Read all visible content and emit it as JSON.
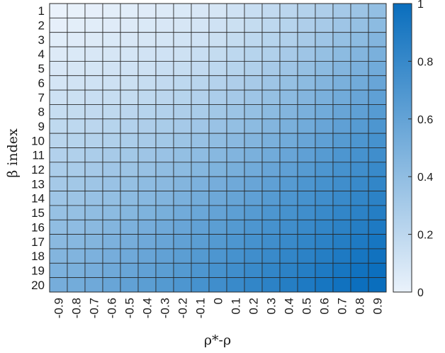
{
  "chart_data": {
    "type": "heatmap",
    "xlabel": "ρ*-ρ",
    "ylabel": "β index",
    "x_categories": [
      "-0.9",
      "-0.8",
      "-0.7",
      "-0.6",
      "-0.5",
      "-0.4",
      "-0.3",
      "-0.2",
      "-0.1",
      "0",
      "0.1",
      "0.2",
      "0.3",
      "0.4",
      "0.5",
      "0.6",
      "0.7",
      "0.8",
      "0.9"
    ],
    "y_categories": [
      "1",
      "2",
      "3",
      "4",
      "5",
      "6",
      "7",
      "8",
      "9",
      "10",
      "11",
      "12",
      "13",
      "14",
      "15",
      "16",
      "17",
      "18",
      "19",
      "20"
    ],
    "values": [
      [
        0.0,
        0.01,
        0.02,
        0.03,
        0.04,
        0.05,
        0.06,
        0.07,
        0.08,
        0.09,
        0.12,
        0.15,
        0.18,
        0.21,
        0.24,
        0.27,
        0.31,
        0.35,
        0.39
      ],
      [
        0.02,
        0.03,
        0.04,
        0.05,
        0.06,
        0.07,
        0.08,
        0.09,
        0.1,
        0.12,
        0.14,
        0.17,
        0.2,
        0.23,
        0.27,
        0.3,
        0.34,
        0.38,
        0.42
      ],
      [
        0.04,
        0.05,
        0.06,
        0.07,
        0.08,
        0.09,
        0.1,
        0.11,
        0.12,
        0.14,
        0.17,
        0.2,
        0.23,
        0.26,
        0.3,
        0.34,
        0.38,
        0.42,
        0.46
      ],
      [
        0.06,
        0.07,
        0.08,
        0.09,
        0.1,
        0.11,
        0.12,
        0.13,
        0.15,
        0.17,
        0.2,
        0.23,
        0.26,
        0.3,
        0.34,
        0.38,
        0.42,
        0.46,
        0.5
      ],
      [
        0.08,
        0.09,
        0.1,
        0.11,
        0.12,
        0.13,
        0.15,
        0.16,
        0.18,
        0.2,
        0.23,
        0.26,
        0.3,
        0.34,
        0.38,
        0.42,
        0.46,
        0.5,
        0.54
      ],
      [
        0.1,
        0.11,
        0.12,
        0.13,
        0.14,
        0.16,
        0.18,
        0.2,
        0.22,
        0.24,
        0.27,
        0.3,
        0.34,
        0.38,
        0.42,
        0.46,
        0.5,
        0.54,
        0.58
      ],
      [
        0.13,
        0.14,
        0.15,
        0.16,
        0.17,
        0.19,
        0.21,
        0.23,
        0.25,
        0.28,
        0.31,
        0.34,
        0.38,
        0.42,
        0.46,
        0.5,
        0.54,
        0.58,
        0.62
      ],
      [
        0.16,
        0.17,
        0.18,
        0.19,
        0.21,
        0.23,
        0.25,
        0.27,
        0.29,
        0.32,
        0.35,
        0.38,
        0.42,
        0.46,
        0.5,
        0.54,
        0.58,
        0.62,
        0.66
      ],
      [
        0.19,
        0.2,
        0.21,
        0.23,
        0.25,
        0.27,
        0.29,
        0.31,
        0.33,
        0.36,
        0.39,
        0.42,
        0.46,
        0.5,
        0.54,
        0.58,
        0.62,
        0.66,
        0.7
      ],
      [
        0.22,
        0.23,
        0.24,
        0.26,
        0.28,
        0.3,
        0.32,
        0.35,
        0.37,
        0.4,
        0.43,
        0.46,
        0.5,
        0.54,
        0.58,
        0.62,
        0.66,
        0.7,
        0.73
      ],
      [
        0.25,
        0.26,
        0.28,
        0.3,
        0.32,
        0.34,
        0.36,
        0.39,
        0.41,
        0.44,
        0.47,
        0.5,
        0.54,
        0.58,
        0.62,
        0.66,
        0.7,
        0.73,
        0.76
      ],
      [
        0.28,
        0.29,
        0.31,
        0.33,
        0.35,
        0.37,
        0.4,
        0.42,
        0.45,
        0.48,
        0.51,
        0.54,
        0.58,
        0.62,
        0.66,
        0.7,
        0.73,
        0.76,
        0.79
      ],
      [
        0.31,
        0.32,
        0.34,
        0.36,
        0.38,
        0.41,
        0.43,
        0.46,
        0.49,
        0.52,
        0.55,
        0.58,
        0.62,
        0.66,
        0.7,
        0.73,
        0.76,
        0.79,
        0.82
      ],
      [
        0.34,
        0.35,
        0.37,
        0.39,
        0.42,
        0.44,
        0.47,
        0.5,
        0.53,
        0.56,
        0.59,
        0.62,
        0.66,
        0.7,
        0.73,
        0.76,
        0.79,
        0.82,
        0.85
      ],
      [
        0.37,
        0.38,
        0.4,
        0.42,
        0.45,
        0.48,
        0.51,
        0.54,
        0.57,
        0.6,
        0.63,
        0.66,
        0.7,
        0.73,
        0.76,
        0.79,
        0.82,
        0.85,
        0.88
      ],
      [
        0.4,
        0.41,
        0.43,
        0.46,
        0.49,
        0.52,
        0.55,
        0.58,
        0.61,
        0.64,
        0.67,
        0.7,
        0.73,
        0.76,
        0.79,
        0.82,
        0.85,
        0.88,
        0.91
      ],
      [
        0.43,
        0.44,
        0.46,
        0.49,
        0.52,
        0.55,
        0.58,
        0.61,
        0.64,
        0.67,
        0.7,
        0.73,
        0.76,
        0.79,
        0.82,
        0.85,
        0.88,
        0.91,
        0.94
      ],
      [
        0.46,
        0.47,
        0.49,
        0.52,
        0.55,
        0.58,
        0.61,
        0.64,
        0.67,
        0.7,
        0.73,
        0.76,
        0.79,
        0.82,
        0.85,
        0.88,
        0.91,
        0.94,
        0.97
      ],
      [
        0.49,
        0.5,
        0.52,
        0.55,
        0.58,
        0.61,
        0.64,
        0.67,
        0.7,
        0.73,
        0.76,
        0.79,
        0.82,
        0.85,
        0.88,
        0.91,
        0.94,
        0.97,
        0.99
      ],
      [
        0.52,
        0.53,
        0.55,
        0.58,
        0.61,
        0.64,
        0.67,
        0.7,
        0.73,
        0.76,
        0.79,
        0.82,
        0.85,
        0.88,
        0.91,
        0.94,
        0.97,
        0.99,
        1.0
      ]
    ],
    "colorbar": {
      "range": [
        0,
        1
      ],
      "ticks": [
        "0",
        "0.2",
        "0.4",
        "0.6",
        "0.8",
        "1"
      ],
      "color_low": "#eaf2fb",
      "color_high": "#0a6ebd"
    },
    "grid": true
  }
}
